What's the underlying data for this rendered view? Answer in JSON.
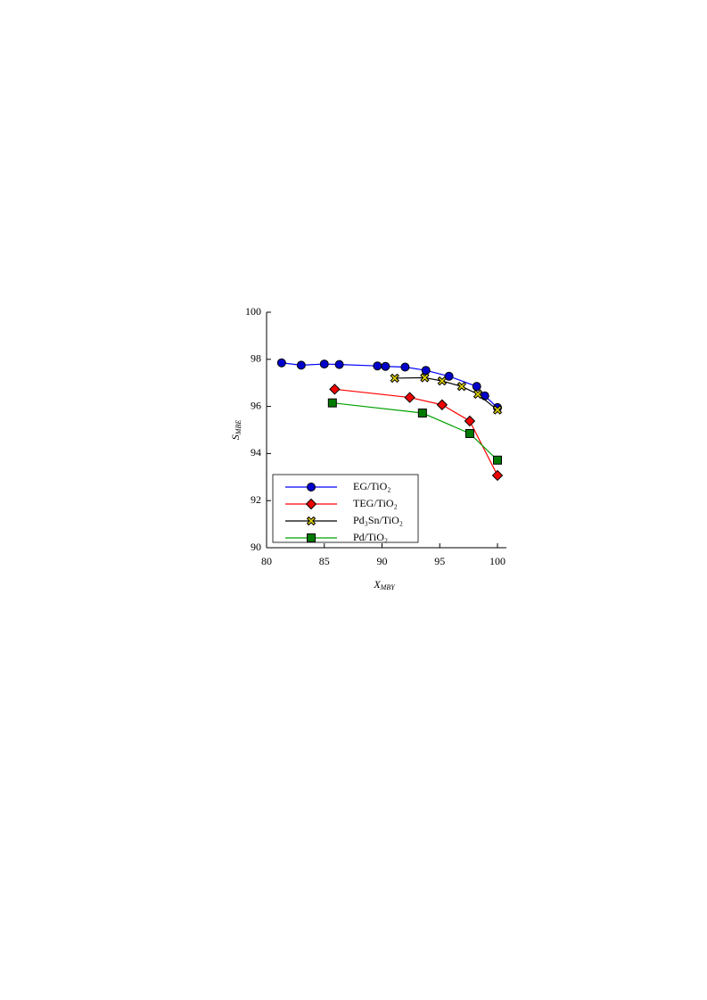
{
  "chart_data": {
    "type": "line",
    "xlabel": "X",
    "xlabel_sub": "MBY",
    "ylabel": "S",
    "ylabel_sub": "MBE",
    "xlim": [
      80,
      100
    ],
    "xticks": [
      80,
      85,
      90,
      95,
      100
    ],
    "ylim": [
      90,
      100
    ],
    "yticks": [
      90,
      92,
      94,
      96,
      98,
      100
    ],
    "legend": "lower left",
    "series": [
      {
        "name": "EG/TiO₂",
        "color": "#0000ff",
        "marker": "circle",
        "marker_color": "#0000cc",
        "x": [
          81.3,
          83,
          85,
          86.3,
          89.6,
          90.3,
          92,
          93.8,
          95.8,
          98.2,
          98.9,
          100
        ],
        "values": [
          97.85,
          97.75,
          97.8,
          97.78,
          97.72,
          97.7,
          97.67,
          97.53,
          97.28,
          96.85,
          96.45,
          95.95
        ]
      },
      {
        "name": "TEG/TiO₂",
        "color": "#ff0000",
        "marker": "diamond",
        "marker_color": "#ee0000",
        "x": [
          85.9,
          92.4,
          95.2,
          97.6,
          100
        ],
        "values": [
          96.73,
          96.38,
          96.07,
          95.38,
          93.07
        ]
      },
      {
        "name": "Pd₃Sn/TiO₂",
        "color": "#000000",
        "marker": "cross",
        "marker_color": "#e6d800",
        "x": [
          91.1,
          93.7,
          95.2,
          96.9,
          98.3,
          100
        ],
        "values": [
          97.2,
          97.22,
          97.08,
          96.85,
          96.52,
          95.85
        ]
      },
      {
        "name": "Pd/TiO₂",
        "color": "#00a000",
        "marker": "square",
        "marker_color": "#007a00",
        "x": [
          85.7,
          93.5,
          97.6,
          100
        ],
        "values": [
          96.15,
          95.72,
          94.85,
          93.72
        ]
      }
    ]
  }
}
